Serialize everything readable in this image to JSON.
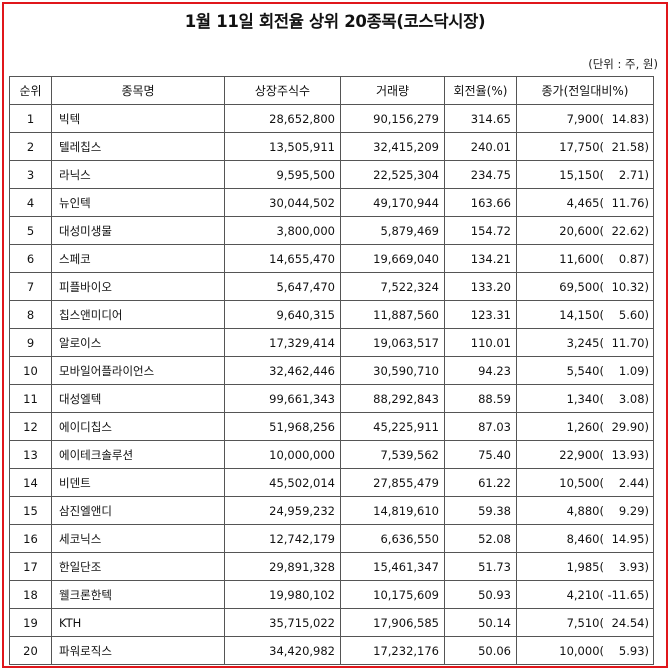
{
  "title": "1월 11일 회전율 상위 20종목(코스닥시장)",
  "unit_note": "(단위 : 주, 원)",
  "headers": [
    "순위",
    "종목명",
    "상장주식수",
    "거래량",
    "회전율(%)",
    "종가(전일대비%)"
  ],
  "rows": [
    {
      "rank": "1",
      "name": "빅텍",
      "shares": "28,652,800",
      "volume": "90,156,279",
      "turnover": "314.65",
      "price": "7,900(",
      "change": "14.83)"
    },
    {
      "rank": "2",
      "name": "텔레칩스",
      "shares": "13,505,911",
      "volume": "32,415,209",
      "turnover": "240.01",
      "price": "17,750(",
      "change": "21.58)"
    },
    {
      "rank": "3",
      "name": "라닉스",
      "shares": "9,595,500",
      "volume": "22,525,304",
      "turnover": "234.75",
      "price": "15,150(",
      "change": "2.71)"
    },
    {
      "rank": "4",
      "name": "뉴인텍",
      "shares": "30,044,502",
      "volume": "49,170,944",
      "turnover": "163.66",
      "price": "4,465(",
      "change": "11.76)"
    },
    {
      "rank": "5",
      "name": "대성미생물",
      "shares": "3,800,000",
      "volume": "5,879,469",
      "turnover": "154.72",
      "price": "20,600(",
      "change": "22.62)"
    },
    {
      "rank": "6",
      "name": "스페코",
      "shares": "14,655,470",
      "volume": "19,669,040",
      "turnover": "134.21",
      "price": "11,600(",
      "change": "0.87)"
    },
    {
      "rank": "7",
      "name": "피플바이오",
      "shares": "5,647,470",
      "volume": "7,522,324",
      "turnover": "133.20",
      "price": "69,500(",
      "change": "10.32)"
    },
    {
      "rank": "8",
      "name": "칩스앤미디어",
      "shares": "9,640,315",
      "volume": "11,887,560",
      "turnover": "123.31",
      "price": "14,150(",
      "change": "5.60)"
    },
    {
      "rank": "9",
      "name": "알로이스",
      "shares": "17,329,414",
      "volume": "19,063,517",
      "turnover": "110.01",
      "price": "3,245(",
      "change": "11.70)"
    },
    {
      "rank": "10",
      "name": "모바일어플라이언스",
      "shares": "32,462,446",
      "volume": "30,590,710",
      "turnover": "94.23",
      "price": "5,540(",
      "change": "1.09)"
    },
    {
      "rank": "11",
      "name": "대성엘텍",
      "shares": "99,661,343",
      "volume": "88,292,843",
      "turnover": "88.59",
      "price": "1,340(",
      "change": "3.08)"
    },
    {
      "rank": "12",
      "name": "에이디칩스",
      "shares": "51,968,256",
      "volume": "45,225,911",
      "turnover": "87.03",
      "price": "1,260(",
      "change": "29.90)"
    },
    {
      "rank": "13",
      "name": "에이테크솔루션",
      "shares": "10,000,000",
      "volume": "7,539,562",
      "turnover": "75.40",
      "price": "22,900(",
      "change": "13.93)"
    },
    {
      "rank": "14",
      "name": "비덴트",
      "shares": "45,502,014",
      "volume": "27,855,479",
      "turnover": "61.22",
      "price": "10,500(",
      "change": "2.44)"
    },
    {
      "rank": "15",
      "name": "삼진엘앤디",
      "shares": "24,959,232",
      "volume": "14,819,610",
      "turnover": "59.38",
      "price": "4,880(",
      "change": "9.29)"
    },
    {
      "rank": "16",
      "name": "세코닉스",
      "shares": "12,742,179",
      "volume": "6,636,550",
      "turnover": "52.08",
      "price": "8,460(",
      "change": "14.95)"
    },
    {
      "rank": "17",
      "name": "한일단조",
      "shares": "29,891,328",
      "volume": "15,461,347",
      "turnover": "51.73",
      "price": "1,985(",
      "change": "3.93)"
    },
    {
      "rank": "18",
      "name": "웰크론한텍",
      "shares": "19,980,102",
      "volume": "10,175,609",
      "turnover": "50.93",
      "price": "4,210(",
      "change": "-11.65)"
    },
    {
      "rank": "19",
      "name": "KTH",
      "shares": "35,715,022",
      "volume": "17,906,585",
      "turnover": "50.14",
      "price": "7,510(",
      "change": "24.54)"
    },
    {
      "rank": "20",
      "name": "파워로직스",
      "shares": "34,420,982",
      "volume": "17,232,176",
      "turnover": "50.06",
      "price": "10,000(",
      "change": "5.93)"
    }
  ]
}
